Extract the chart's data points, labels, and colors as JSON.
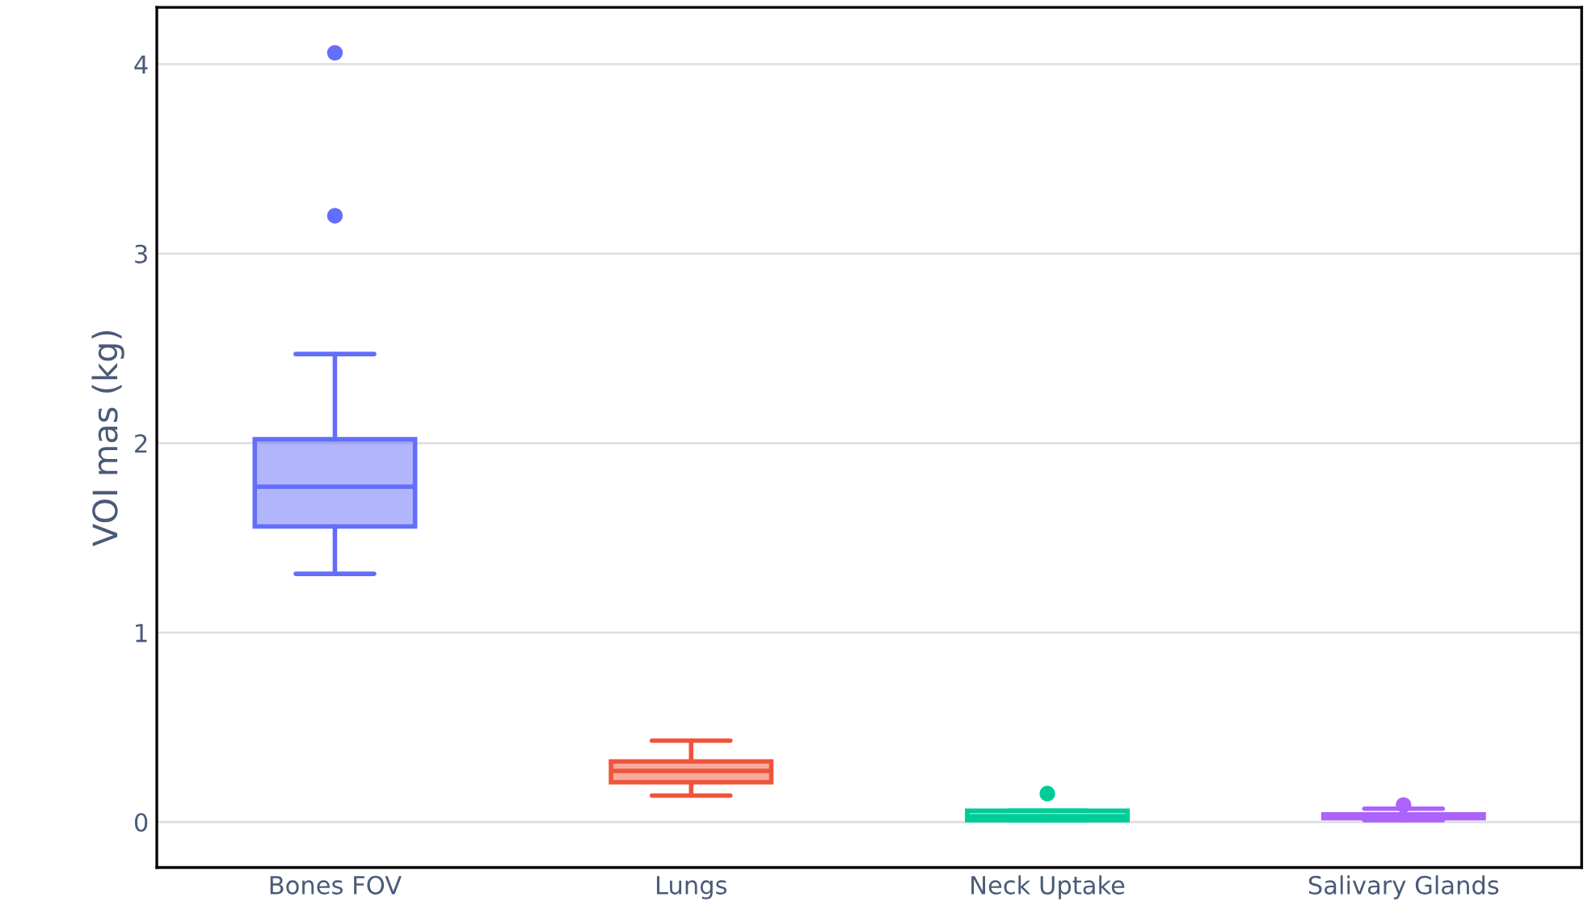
{
  "chart_data": {
    "type": "box",
    "ylabel": "VOI mas (kg)",
    "categories": [
      "Bones FOV",
      "Lungs",
      "Neck Uptake",
      "Salivary Glands"
    ],
    "colors": [
      "#636efa",
      "#ef553b",
      "#00cc96",
      "#ab63fa"
    ],
    "boxes": [
      {
        "low": 1.31,
        "q1": 1.56,
        "median": 1.77,
        "q3": 2.02,
        "high": 2.47,
        "outliers": [
          3.2,
          4.06
        ]
      },
      {
        "low": 0.14,
        "q1": 0.21,
        "median": 0.27,
        "q3": 0.32,
        "high": 0.43
      },
      {
        "low": 0.01,
        "q1": 0.01,
        "median": 0.03,
        "q3": 0.06,
        "high": 0.06,
        "outliers": [
          0.15
        ]
      },
      {
        "low": 0.01,
        "q1": 0.02,
        "median": 0.03,
        "q3": 0.04,
        "high": 0.07,
        "outliers": [
          0.09
        ]
      }
    ],
    "ylim": [
      -0.24,
      4.3
    ],
    "yticks": [
      0,
      1,
      2,
      3,
      4
    ],
    "grid": "y",
    "legend": false
  }
}
